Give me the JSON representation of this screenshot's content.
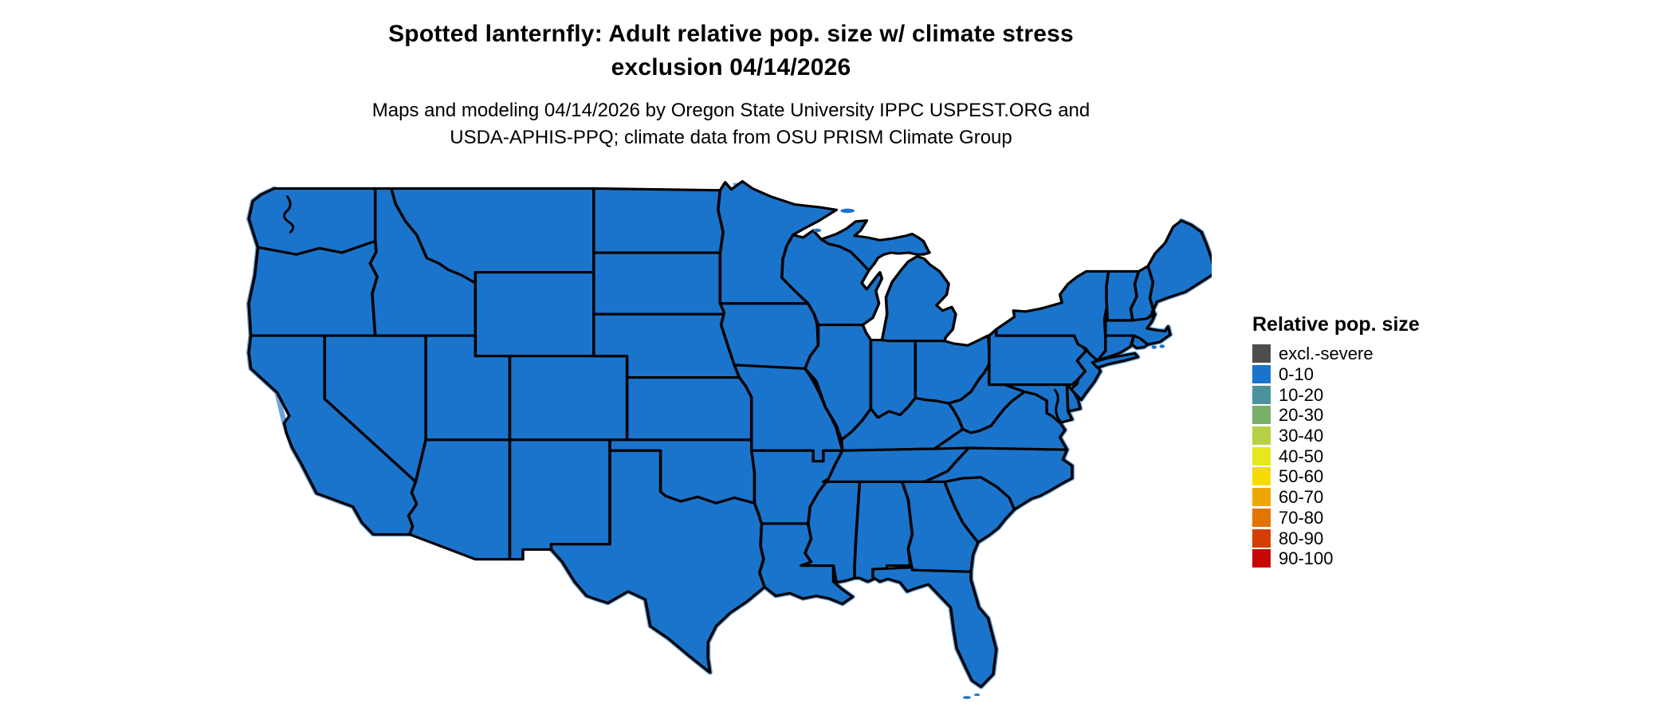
{
  "header": {
    "title_line1": "Spotted lanternfly: Adult relative pop. size w/ climate stress",
    "title_line2": "exclusion 04/14/2026",
    "subtitle_line1": "Maps and modeling 04/14/2026 by Oregon State University IPPC USPEST.ORG and",
    "subtitle_line2": "USDA-APHIS-PPQ; climate data from OSU PRISM Climate Group"
  },
  "legend": {
    "title": "Relative pop. size",
    "items": [
      {
        "label": "excl.-severe",
        "color": "#4D4D4D"
      },
      {
        "label": "0-10",
        "color": "#1B74CC"
      },
      {
        "label": "10-20",
        "color": "#4B929C"
      },
      {
        "label": "20-30",
        "color": "#7BAE6B"
      },
      {
        "label": "30-40",
        "color": "#B6D145"
      },
      {
        "label": "40-50",
        "color": "#E6E81E"
      },
      {
        "label": "50-60",
        "color": "#F6DB00"
      },
      {
        "label": "60-70",
        "color": "#ECA800"
      },
      {
        "label": "70-80",
        "color": "#E07500"
      },
      {
        "label": "80-90",
        "color": "#D43E04"
      },
      {
        "label": "90-100",
        "color": "#C70702"
      }
    ]
  },
  "map": {
    "region": "Continental United States",
    "all_states_category": "0-10",
    "colors": {
      "land": "#1B74CC",
      "state_border": "#000000",
      "water_fringe": "#6AA4DC",
      "background": "#FFFFFF"
    }
  }
}
